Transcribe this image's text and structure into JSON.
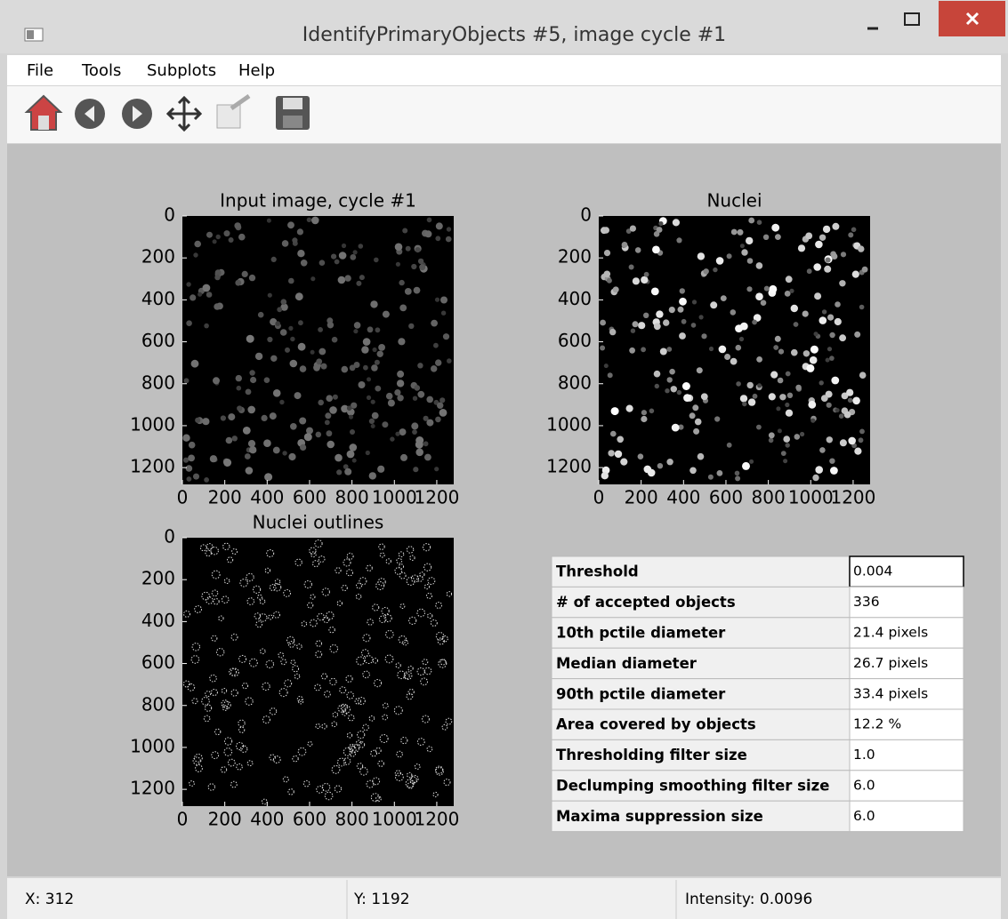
{
  "window": {
    "title": "IdentifyPrimaryObjects #5, image cycle #1"
  },
  "menu": [
    "File",
    "Tools",
    "Subplots",
    "Help"
  ],
  "panels": [
    {
      "title": "Input image, cycle #1",
      "xlim": [
        0,
        1280
      ],
      "ylim": [
        1280,
        0
      ],
      "xticks": [
        0,
        200,
        400,
        600,
        800,
        1000,
        1200
      ],
      "yticks": [
        0,
        200,
        400,
        600,
        800,
        1000,
        1200
      ]
    },
    {
      "title": "Nuclei",
      "xlim": [
        0,
        1280
      ],
      "ylim": [
        1280,
        0
      ],
      "xticks": [
        0,
        200,
        400,
        600,
        800,
        1000,
        1200
      ],
      "yticks": [
        0,
        200,
        400,
        600,
        800,
        1000,
        1200
      ]
    },
    {
      "title": "Nuclei outlines",
      "xlim": [
        0,
        1280
      ],
      "ylim": [
        1280,
        0
      ],
      "xticks": [
        0,
        200,
        400,
        600,
        800,
        1000,
        1200
      ],
      "yticks": [
        0,
        200,
        400,
        600,
        800,
        1000,
        1200
      ]
    }
  ],
  "table": {
    "rows": [
      [
        "Threshold",
        "0.004"
      ],
      [
        "# of accepted objects",
        "336"
      ],
      [
        "10th pctile diameter",
        "21.4 pixels"
      ],
      [
        "Median diameter",
        "26.7 pixels"
      ],
      [
        "90th pctile diameter",
        "33.4 pixels"
      ],
      [
        "Area covered by objects",
        "12.2 %"
      ],
      [
        "Thresholding filter size",
        "1.0"
      ],
      [
        "Declumping smoothing filter size",
        "6.0"
      ],
      [
        "Maxima suppression size",
        "6.0"
      ]
    ]
  },
  "status": [
    "X: 312",
    "Y: 1192",
    "Intensity: 0.0096"
  ]
}
